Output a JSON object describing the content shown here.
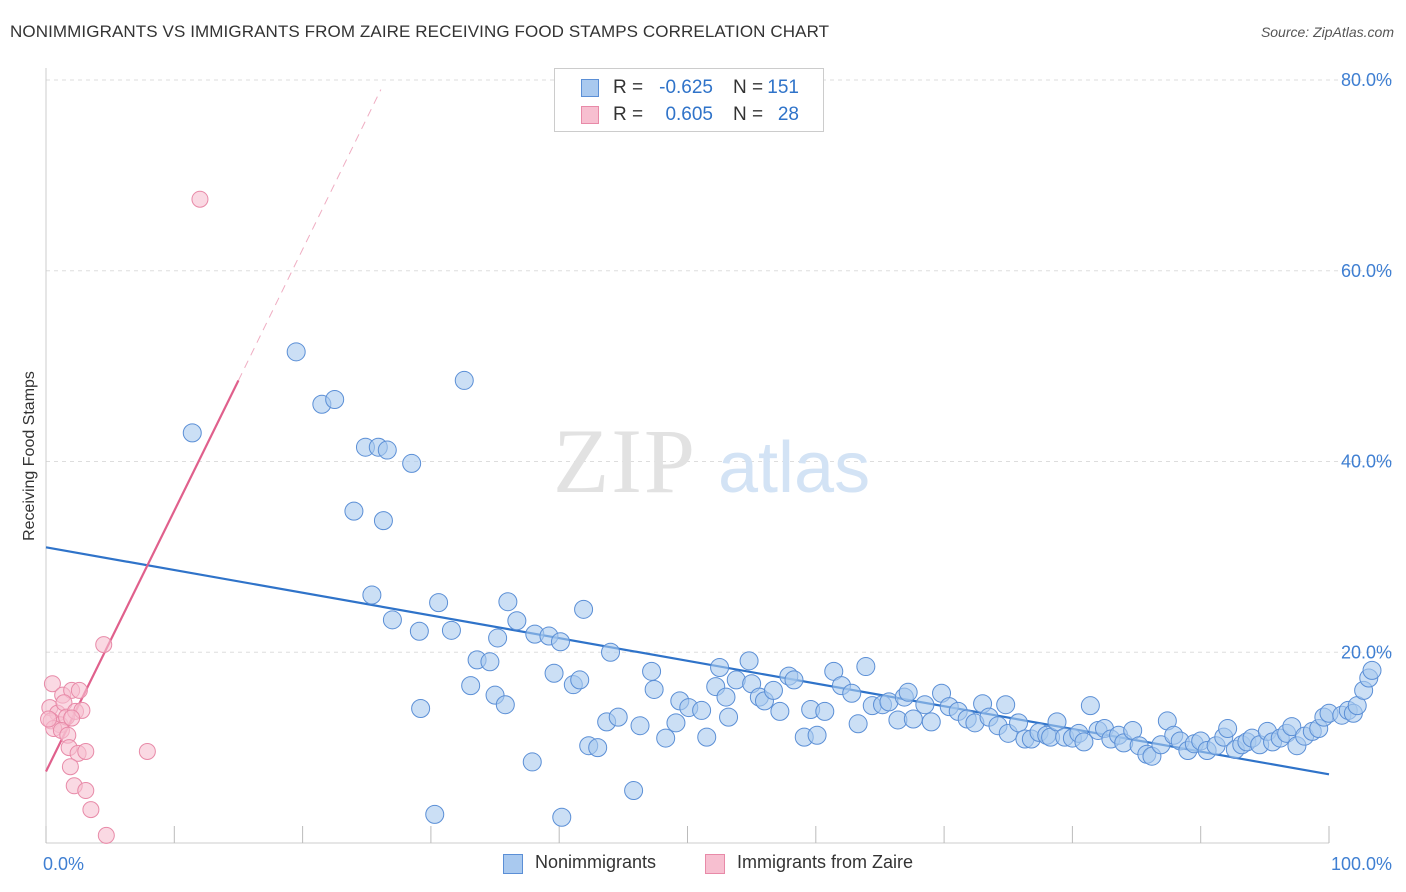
{
  "title": "NONIMMIGRANTS VS IMMIGRANTS FROM ZAIRE RECEIVING FOOD STAMPS CORRELATION CHART",
  "source": "Source: ZipAtlas.com",
  "watermark": {
    "zip": "ZIP",
    "atlas": "atlas"
  },
  "legend": {
    "rows": [
      {
        "r_label": "R =",
        "r_value": "-0.625",
        "n_label": "N =",
        "n_value": "151"
      },
      {
        "r_label": "R =",
        "r_value": "0.605",
        "n_label": "N =",
        "n_value": "28"
      }
    ]
  },
  "bottom_legend": [
    "Nonimmigrants",
    "Immigrants from Zaire"
  ],
  "colors": {
    "blue_fill": "#a9c9ef",
    "blue_stroke": "#5b8fd6",
    "blue_line": "#2f73c9",
    "pink_fill": "#f7bfd0",
    "pink_stroke": "#e88aa8",
    "pink_line": "#e0608c",
    "tick_text": "#3f7fd2",
    "grid": "#dddddd"
  },
  "chart_data": {
    "type": "scatter",
    "title": "NONIMMIGRANTS VS IMMIGRANTS FROM ZAIRE RECEIVING FOOD STAMPS CORRELATION CHART",
    "xlabel": "",
    "ylabel": "Receiving Food Stamps",
    "xlim": [
      0,
      100
    ],
    "ylim": [
      0,
      80
    ],
    "x_tick_labels": [
      "0.0%",
      "100.0%"
    ],
    "y_ticks": [
      20,
      40,
      60,
      80
    ],
    "y_tick_labels": [
      "20.0%",
      "40.0%",
      "60.0%",
      "80.0%"
    ],
    "grid": true,
    "legend_position": "top-center",
    "series": [
      {
        "name": "Nonimmigrants",
        "color": "#a9c9ef",
        "points": [
          [
            11.4,
            43.0
          ],
          [
            19.5,
            51.5
          ],
          [
            21.5,
            46.0
          ],
          [
            22.5,
            46.5
          ],
          [
            24.9,
            41.5
          ],
          [
            25.9,
            41.5
          ],
          [
            26.6,
            41.2
          ],
          [
            28.5,
            39.8
          ],
          [
            32.6,
            48.5
          ],
          [
            24.0,
            34.8
          ],
          [
            26.3,
            33.8
          ],
          [
            25.4,
            26.0
          ],
          [
            27.0,
            23.4
          ],
          [
            29.1,
            22.2
          ],
          [
            30.6,
            25.2
          ],
          [
            31.6,
            22.3
          ],
          [
            36.0,
            25.3
          ],
          [
            35.2,
            21.5
          ],
          [
            36.7,
            23.3
          ],
          [
            38.1,
            21.9
          ],
          [
            39.2,
            21.7
          ],
          [
            40.1,
            21.1
          ],
          [
            41.9,
            24.5
          ],
          [
            44.0,
            20.0
          ],
          [
            33.6,
            19.2
          ],
          [
            34.6,
            19.0
          ],
          [
            33.1,
            16.5
          ],
          [
            35.0,
            15.5
          ],
          [
            35.8,
            14.5
          ],
          [
            39.6,
            17.8
          ],
          [
            41.1,
            16.6
          ],
          [
            41.6,
            17.1
          ],
          [
            29.2,
            14.1
          ],
          [
            37.9,
            8.5
          ],
          [
            30.3,
            3.0
          ],
          [
            40.2,
            2.7
          ],
          [
            45.8,
            5.5
          ],
          [
            43.7,
            12.7
          ],
          [
            44.6,
            13.2
          ],
          [
            42.3,
            10.2
          ],
          [
            43.0,
            10.0
          ],
          [
            46.3,
            12.3
          ],
          [
            47.2,
            18.0
          ],
          [
            47.4,
            16.1
          ],
          [
            48.3,
            11.0
          ],
          [
            49.1,
            12.6
          ],
          [
            49.4,
            14.9
          ],
          [
            50.1,
            14.2
          ],
          [
            51.1,
            13.9
          ],
          [
            51.5,
            11.1
          ],
          [
            52.2,
            16.4
          ],
          [
            52.5,
            18.4
          ],
          [
            53.0,
            15.3
          ],
          [
            53.2,
            13.2
          ],
          [
            53.8,
            17.1
          ],
          [
            54.8,
            19.1
          ],
          [
            55.0,
            16.7
          ],
          [
            55.6,
            15.3
          ],
          [
            56.0,
            14.9
          ],
          [
            56.7,
            16.0
          ],
          [
            57.2,
            13.8
          ],
          [
            57.9,
            17.5
          ],
          [
            58.3,
            17.1
          ],
          [
            59.1,
            11.1
          ],
          [
            59.6,
            14.0
          ],
          [
            60.1,
            11.3
          ],
          [
            60.7,
            13.8
          ],
          [
            61.4,
            18.0
          ],
          [
            62.0,
            16.5
          ],
          [
            62.8,
            15.7
          ],
          [
            63.3,
            12.5
          ],
          [
            63.9,
            18.5
          ],
          [
            64.4,
            14.4
          ],
          [
            65.2,
            14.5
          ],
          [
            65.7,
            14.8
          ],
          [
            66.4,
            12.9
          ],
          [
            66.9,
            15.3
          ],
          [
            67.2,
            15.8
          ],
          [
            67.6,
            13.0
          ],
          [
            68.5,
            14.5
          ],
          [
            69.0,
            12.7
          ],
          [
            69.8,
            15.7
          ],
          [
            70.4,
            14.3
          ],
          [
            71.1,
            13.8
          ],
          [
            71.8,
            13.0
          ],
          [
            72.4,
            12.6
          ],
          [
            73.0,
            14.6
          ],
          [
            73.5,
            13.2
          ],
          [
            74.2,
            12.3
          ],
          [
            74.8,
            14.5
          ],
          [
            75.0,
            11.5
          ],
          [
            75.8,
            12.6
          ],
          [
            76.3,
            10.9
          ],
          [
            76.8,
            10.9
          ],
          [
            77.4,
            11.6
          ],
          [
            78.0,
            11.3
          ],
          [
            78.3,
            11.1
          ],
          [
            78.8,
            12.7
          ],
          [
            79.4,
            11.1
          ],
          [
            80.0,
            11.0
          ],
          [
            80.5,
            11.5
          ],
          [
            80.9,
            10.6
          ],
          [
            81.4,
            14.4
          ],
          [
            82.0,
            11.8
          ],
          [
            82.5,
            12.0
          ],
          [
            83.0,
            10.9
          ],
          [
            83.6,
            11.3
          ],
          [
            84.0,
            10.5
          ],
          [
            84.7,
            11.8
          ],
          [
            85.2,
            10.2
          ],
          [
            85.8,
            9.3
          ],
          [
            86.2,
            9.1
          ],
          [
            86.9,
            10.3
          ],
          [
            87.4,
            12.8
          ],
          [
            87.9,
            11.3
          ],
          [
            88.4,
            10.7
          ],
          [
            89.0,
            9.7
          ],
          [
            89.5,
            10.4
          ],
          [
            90.0,
            10.7
          ],
          [
            90.5,
            9.7
          ],
          [
            91.2,
            10.2
          ],
          [
            91.8,
            11.1
          ],
          [
            92.1,
            12.0
          ],
          [
            92.7,
            9.8
          ],
          [
            93.2,
            10.3
          ],
          [
            93.6,
            10.6
          ],
          [
            94.0,
            11.0
          ],
          [
            94.6,
            10.3
          ],
          [
            95.2,
            11.7
          ],
          [
            95.6,
            10.6
          ],
          [
            96.2,
            11.0
          ],
          [
            96.7,
            11.5
          ],
          [
            97.1,
            12.2
          ],
          [
            97.5,
            10.2
          ],
          [
            98.1,
            11.2
          ],
          [
            98.7,
            11.7
          ],
          [
            99.2,
            12.0
          ],
          [
            99.6,
            13.2
          ],
          [
            100.0,
            13.6
          ],
          [
            101.0,
            13.4
          ],
          [
            101.5,
            13.9
          ],
          [
            101.9,
            13.6
          ],
          [
            102.2,
            14.4
          ],
          [
            102.7,
            16.0
          ],
          [
            103.1,
            17.3
          ],
          [
            103.6,
            18.1
          ]
        ]
      },
      {
        "name": "Immigrants from Zaire",
        "color": "#f7bfd0",
        "points": [
          [
            12.0,
            67.5
          ],
          [
            4.5,
            20.8
          ],
          [
            7.9,
            9.6
          ],
          [
            0.5,
            16.7
          ],
          [
            1.3,
            15.5
          ],
          [
            2.0,
            16.0
          ],
          [
            2.6,
            16.0
          ],
          [
            0.3,
            14.2
          ],
          [
            0.9,
            13.6
          ],
          [
            1.4,
            14.7
          ],
          [
            0.4,
            12.8
          ],
          [
            1.1,
            12.4
          ],
          [
            1.6,
            13.2
          ],
          [
            2.3,
            13.8
          ],
          [
            2.8,
            13.9
          ],
          [
            0.6,
            12.0
          ],
          [
            1.2,
            11.8
          ],
          [
            1.7,
            11.3
          ],
          [
            0.2,
            13.0
          ],
          [
            2.0,
            13.1
          ],
          [
            1.8,
            10.0
          ],
          [
            2.5,
            9.4
          ],
          [
            3.1,
            9.6
          ],
          [
            1.9,
            8.0
          ],
          [
            2.2,
            6.0
          ],
          [
            3.1,
            5.5
          ],
          [
            3.5,
            3.5
          ],
          [
            4.7,
            0.8
          ]
        ]
      }
    ],
    "trend_lines": [
      {
        "series": "Nonimmigrants",
        "x": [
          0,
          100
        ],
        "y": [
          31.0,
          7.2
        ]
      },
      {
        "series": "Immigrants from Zaire",
        "x": [
          0,
          15.0
        ],
        "y": [
          7.5,
          48.5
        ],
        "dashed_extension_to": [
          26.1,
          79.0
        ]
      }
    ]
  }
}
